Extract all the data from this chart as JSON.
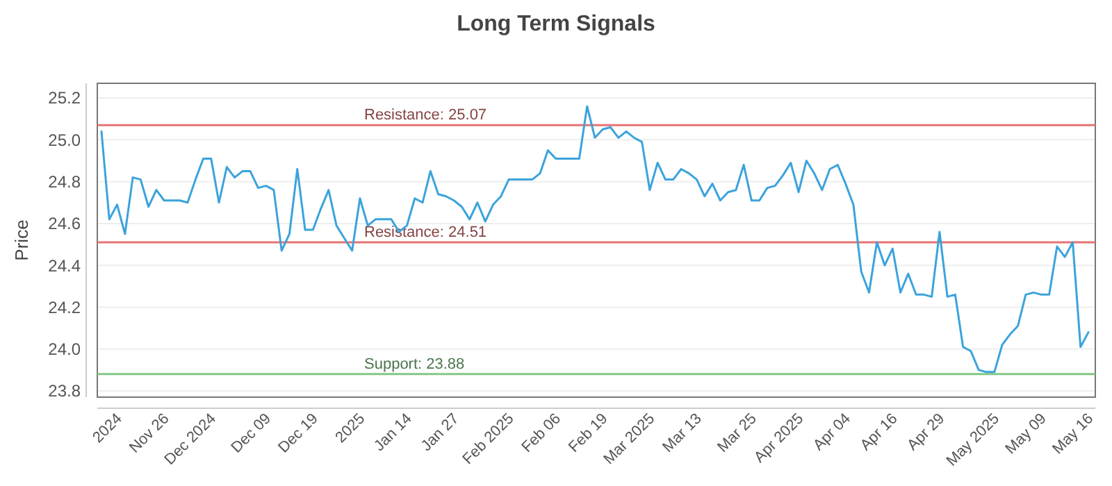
{
  "chart_data": {
    "type": "line",
    "title": "Long Term Signals",
    "ylabel": "Price",
    "categories": [
      null,
      null,
      "2024",
      null,
      null,
      null,
      null,
      null,
      "Nov 26",
      null,
      null,
      null,
      null,
      null,
      "Dec 2024",
      null,
      null,
      null,
      null,
      null,
      null,
      "Dec 09",
      null,
      null,
      null,
      null,
      null,
      "Dec 19",
      null,
      null,
      null,
      null,
      null,
      "2025",
      null,
      null,
      null,
      null,
      null,
      "Jan 14",
      null,
      null,
      null,
      null,
      null,
      "Jan 27",
      null,
      null,
      null,
      null,
      null,
      null,
      "Feb 2025",
      null,
      null,
      null,
      null,
      null,
      "Feb 06",
      null,
      null,
      null,
      null,
      null,
      "Feb 19",
      null,
      null,
      null,
      null,
      null,
      "Mar 2025",
      null,
      null,
      null,
      null,
      null,
      "Mar 13",
      null,
      null,
      null,
      null,
      null,
      null,
      "Mar 25",
      null,
      null,
      null,
      null,
      null,
      "Apr 2025",
      null,
      null,
      null,
      null,
      null,
      "Apr 04",
      null,
      null,
      null,
      null,
      null,
      "Apr 16",
      null,
      null,
      null,
      null,
      null,
      "Apr 29",
      null,
      null,
      null,
      null,
      null,
      null,
      "May 2025",
      null,
      null,
      null,
      null,
      null,
      "May 09",
      null,
      null,
      null,
      null,
      null,
      "May 16"
    ],
    "series": [
      {
        "color": "#3ba3dc",
        "values": [
          25.04,
          24.62,
          24.69,
          24.55,
          24.82,
          24.81,
          24.68,
          24.76,
          24.71,
          24.71,
          24.71,
          24.7,
          24.81,
          24.91,
          24.91,
          24.7,
          24.87,
          24.82,
          24.85,
          24.85,
          24.77,
          24.78,
          24.76,
          24.47,
          24.55,
          24.86,
          24.57,
          24.57,
          24.67,
          24.76,
          24.59,
          24.53,
          24.47,
          24.72,
          24.59,
          24.62,
          24.62,
          24.62,
          24.56,
          24.59,
          24.72,
          24.7,
          24.85,
          24.74,
          24.73,
          24.71,
          24.68,
          24.62,
          24.7,
          24.61,
          24.69,
          24.73,
          24.81,
          24.81,
          24.81,
          24.81,
          24.84,
          24.95,
          24.91,
          24.91,
          24.91,
          24.91,
          25.16,
          25.01,
          25.05,
          25.06,
          25.01,
          25.04,
          25.01,
          24.99,
          24.76,
          24.89,
          24.81,
          24.81,
          24.86,
          24.84,
          24.81,
          24.73,
          24.79,
          24.71,
          24.75,
          24.76,
          24.88,
          24.71,
          24.71,
          24.77,
          24.78,
          24.83,
          24.89,
          24.75,
          24.9,
          24.84,
          24.76,
          24.86,
          24.88,
          24.79,
          24.69,
          24.37,
          24.27,
          24.51,
          24.4,
          24.48,
          24.27,
          24.36,
          24.26,
          24.26,
          24.25,
          24.56,
          24.25,
          24.26,
          24.01,
          23.99,
          23.9,
          23.89,
          23.89,
          24.02,
          24.07,
          24.11,
          24.26,
          24.27,
          24.26,
          24.26,
          24.49,
          24.44,
          24.51,
          24.01,
          24.08
        ]
      }
    ],
    "ylim": [
      23.77,
      25.27
    ],
    "yticks": [
      23.8,
      {
        "value": 24,
        "label": "24.0"
      },
      24.2,
      24.4,
      24.6,
      24.8,
      {
        "value": 25,
        "label": "25.0"
      },
      25.2
    ],
    "grid": "y",
    "marker": "none",
    "line_style": "solid",
    "ref_lines": [
      {
        "axis": "y",
        "value": 25.07,
        "label": "Resistance: 25.07",
        "color": "#e57373"
      },
      {
        "axis": "y",
        "value": 24.51,
        "label": "Resistance: 24.51",
        "color": "#e57373"
      },
      {
        "axis": "y",
        "value": 23.88,
        "label": "Support: 23.88",
        "color": "#81c784"
      }
    ]
  }
}
